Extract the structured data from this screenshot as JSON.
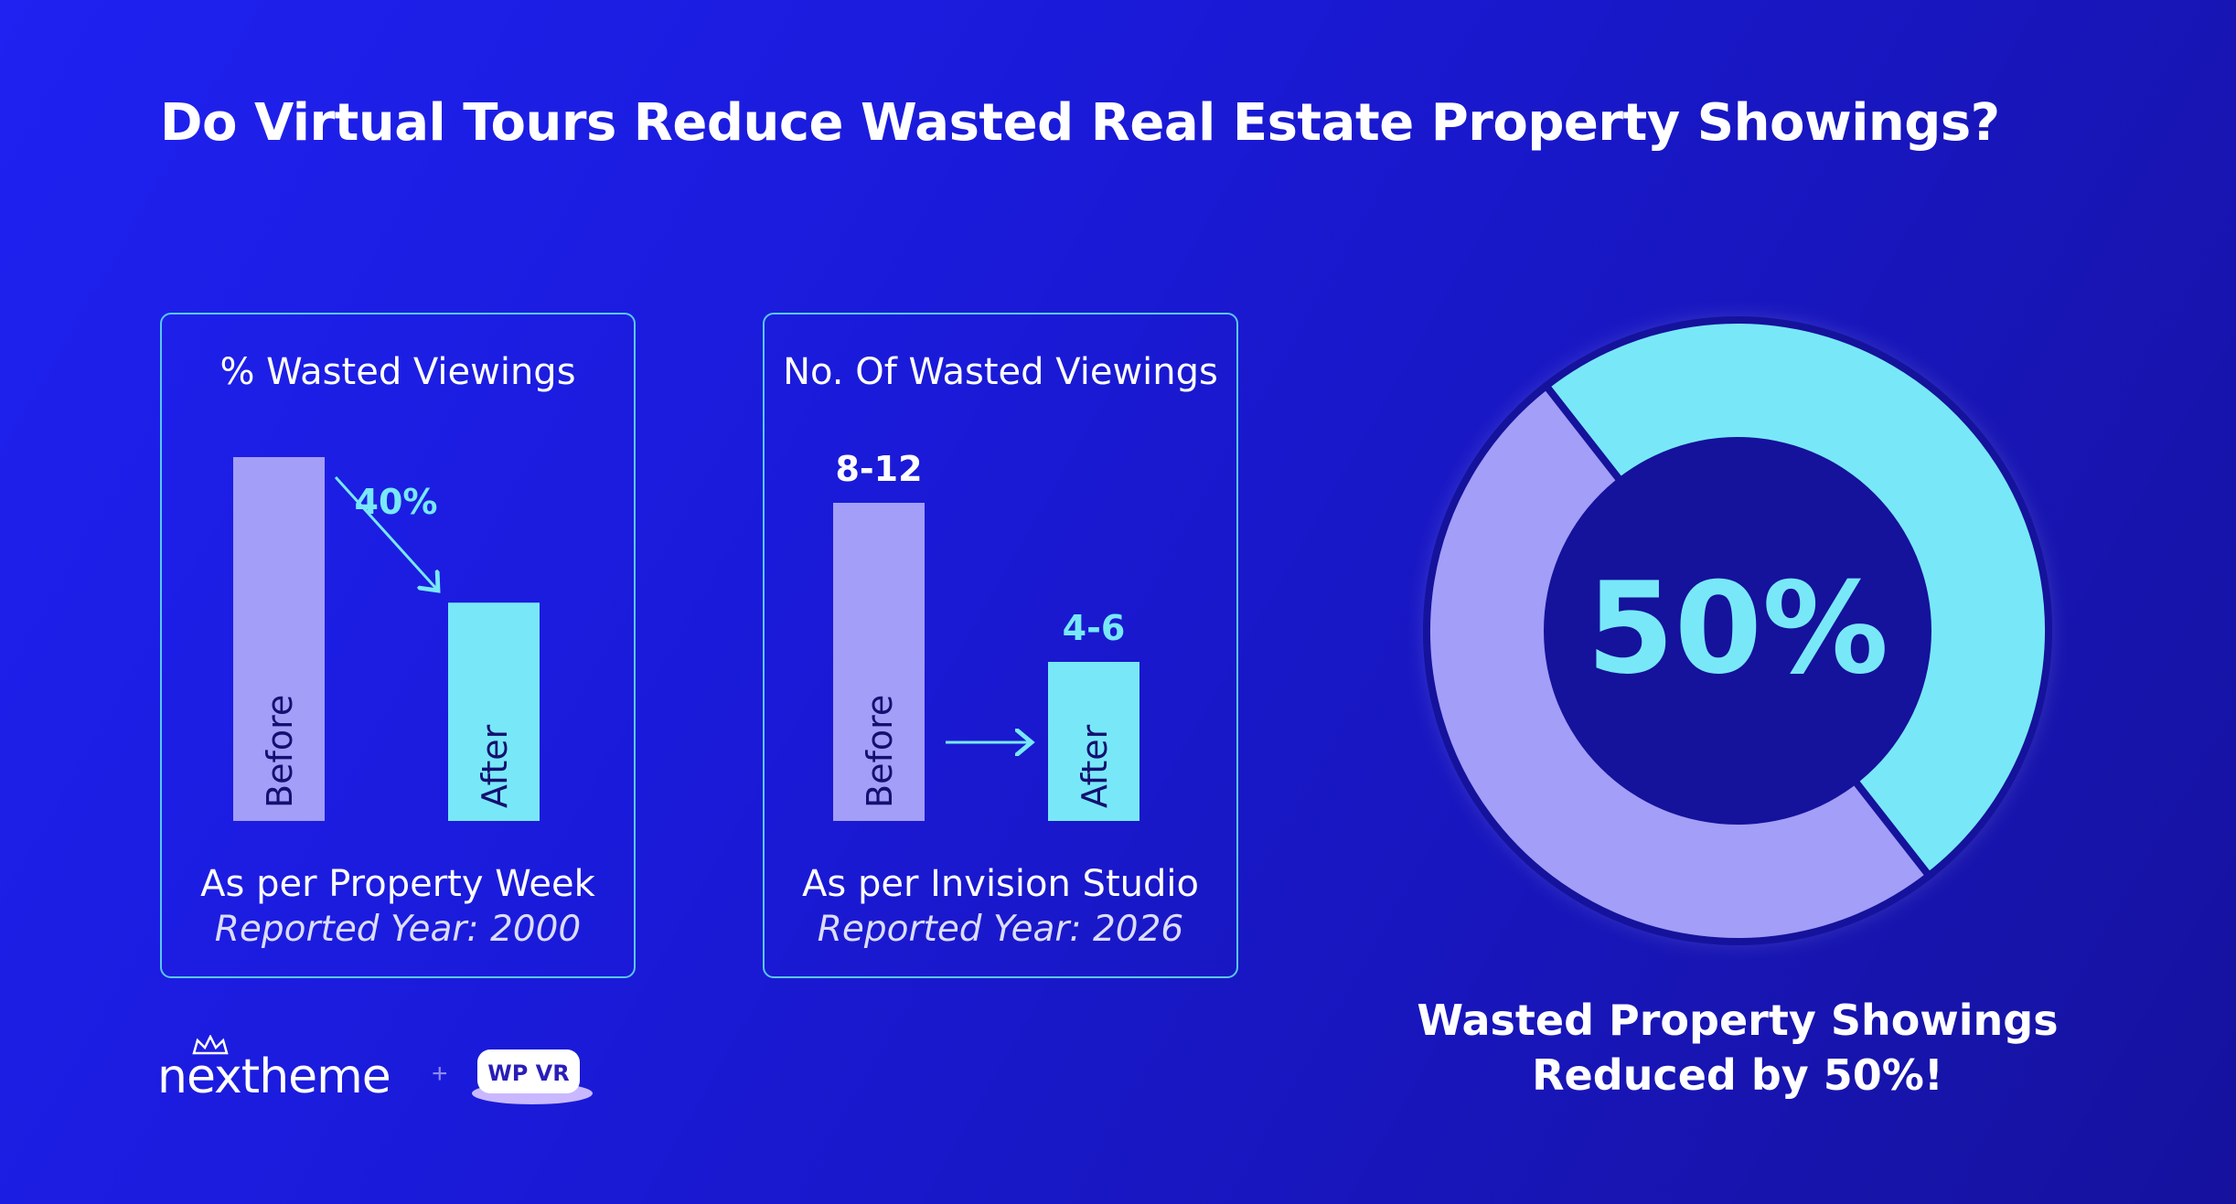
{
  "title": "Do Virtual Tours Reduce Wasted Real Estate Property Showings?",
  "colors": {
    "before": "#a39ef7",
    "after": "#78e8f8",
    "card_border": "#59c8f0",
    "donut_center": "#15129c"
  },
  "chart_data": [
    {
      "type": "bar",
      "title": "% Wasted Viewings",
      "categories": [
        "Before",
        "After"
      ],
      "values": [
        100,
        60
      ],
      "change_label": "40%",
      "source": "As per Property Week",
      "reported_year": "Reported Year: 2000"
    },
    {
      "type": "bar",
      "title": "No. Of Wasted Viewings",
      "categories": [
        "Before",
        "After"
      ],
      "values": [
        10,
        5
      ],
      "value_labels": [
        "8-12",
        "4-6"
      ],
      "source": "As per Invision Studio",
      "reported_year": "Reported Year: 2026"
    },
    {
      "type": "pie",
      "center_label": "50%",
      "values": [
        50,
        50
      ],
      "caption_line1": "Wasted Property Showings",
      "caption_line2": "Reduced by 50%!"
    }
  ],
  "logos": {
    "nextheme": "nextheme",
    "wpvr": "WP VR",
    "separator": "+"
  }
}
